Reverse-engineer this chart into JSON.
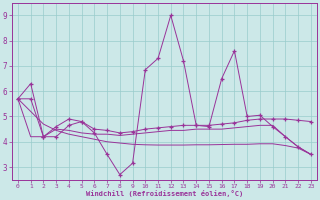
{
  "xlabel": "Windchill (Refroidissement éolien,°C)",
  "ylim": [
    2.5,
    9.5
  ],
  "xlim": [
    -0.5,
    23.5
  ],
  "yticks": [
    3,
    4,
    5,
    6,
    7,
    8,
    9
  ],
  "xticks": [
    0,
    1,
    2,
    3,
    4,
    5,
    6,
    7,
    8,
    9,
    10,
    11,
    12,
    13,
    14,
    15,
    16,
    17,
    18,
    19,
    20,
    21,
    22,
    23
  ],
  "bg_color": "#cce8e8",
  "line_color": "#993399",
  "grid_color": "#99cccc",
  "lines": [
    {
      "x": [
        0,
        1,
        2,
        3,
        4,
        5,
        6,
        7,
        8,
        9,
        10,
        11,
        12,
        13,
        14,
        15,
        16,
        17,
        18,
        19,
        20,
        21,
        22,
        23
      ],
      "y": [
        5.7,
        6.3,
        4.2,
        4.2,
        4.65,
        4.8,
        4.35,
        3.5,
        2.7,
        3.15,
        6.85,
        7.3,
        9.0,
        7.2,
        4.65,
        4.6,
        6.5,
        7.6,
        5.0,
        5.05,
        4.6,
        4.2,
        3.8,
        3.5
      ],
      "marker": "+"
    },
    {
      "x": [
        0,
        1,
        2,
        3,
        4,
        5,
        6,
        7,
        8,
        9,
        10,
        11,
        12,
        13,
        14,
        15,
        16,
        17,
        18,
        19,
        20,
        21,
        22,
        23
      ],
      "y": [
        5.7,
        5.7,
        4.2,
        4.6,
        4.9,
        4.8,
        4.5,
        4.45,
        4.35,
        4.4,
        4.5,
        4.55,
        4.6,
        4.65,
        4.65,
        4.65,
        4.7,
        4.75,
        4.85,
        4.9,
        4.9,
        4.9,
        4.85,
        4.8
      ],
      "marker": "+"
    },
    {
      "x": [
        0,
        1,
        2,
        3,
        4,
        5,
        6,
        7,
        8,
        9,
        10,
        11,
        12,
        13,
        14,
        15,
        16,
        17,
        18,
        19,
        20,
        21,
        22,
        23
      ],
      "y": [
        5.7,
        4.2,
        4.2,
        4.5,
        4.45,
        4.35,
        4.3,
        4.3,
        4.25,
        4.3,
        4.35,
        4.4,
        4.45,
        4.45,
        4.5,
        4.5,
        4.5,
        4.55,
        4.6,
        4.65,
        4.65,
        4.2,
        3.8,
        3.5
      ],
      "marker": null
    },
    {
      "x": [
        0,
        1,
        2,
        3,
        4,
        5,
        6,
        7,
        8,
        9,
        10,
        11,
        12,
        13,
        14,
        15,
        16,
        17,
        18,
        19,
        20,
        21,
        22,
        23
      ],
      "y": [
        5.7,
        5.2,
        4.7,
        4.45,
        4.3,
        4.2,
        4.1,
        4.0,
        3.95,
        3.9,
        3.88,
        3.87,
        3.87,
        3.87,
        3.88,
        3.88,
        3.89,
        3.9,
        3.9,
        3.92,
        3.92,
        3.85,
        3.75,
        3.5
      ],
      "marker": null
    }
  ]
}
